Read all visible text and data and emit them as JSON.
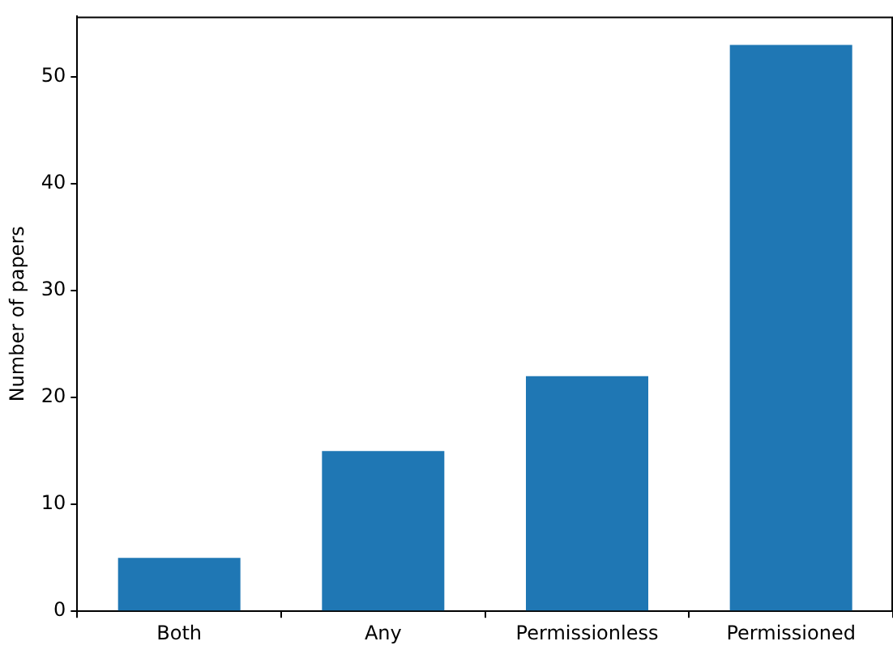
{
  "chart_data": {
    "type": "bar",
    "ylabel": "Number of papers",
    "categories": [
      "Both",
      "Any",
      "Permissionless",
      "Permissioned"
    ],
    "values": [
      5,
      15,
      22,
      53
    ],
    "color": "#1f77b4",
    "ylim": [
      0,
      55.65
    ],
    "yticks": [
      0,
      10,
      20,
      30,
      40,
      50
    ],
    "grid": false,
    "legend": false
  }
}
